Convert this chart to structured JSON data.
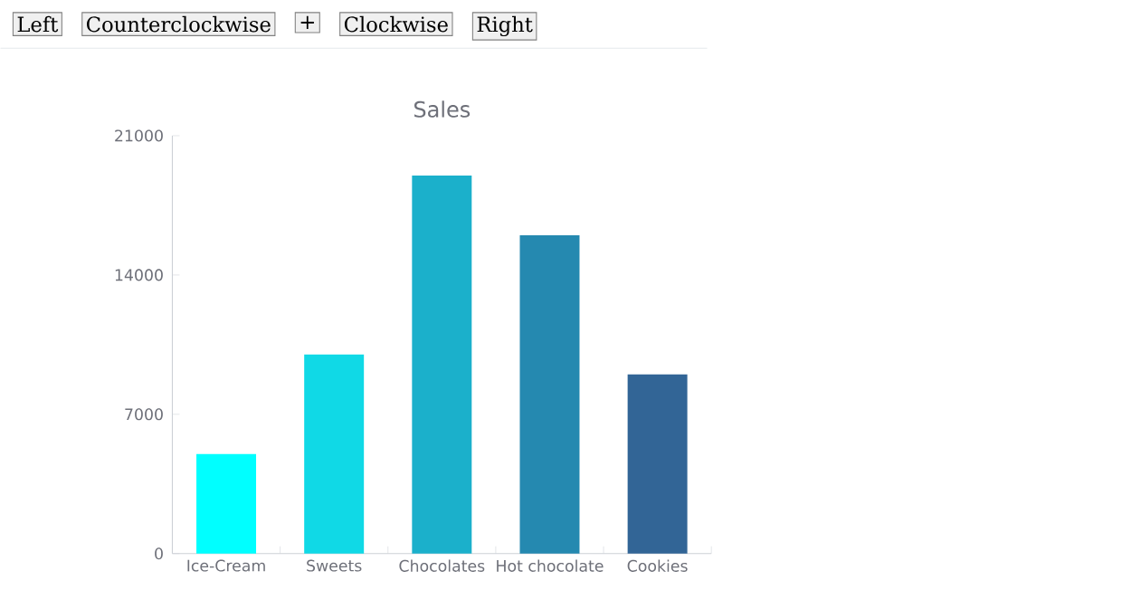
{
  "chart_data": {
    "type": "bar",
    "title": "Sales",
    "categories": [
      "Ice-Cream",
      "Sweets",
      "Chocolates",
      "Hot chocolate",
      "Cookies"
    ],
    "values": [
      5000,
      10000,
      19000,
      16000,
      9000
    ],
    "colors": [
      "#00ffff",
      "#10d9e6",
      "#1bb0cb",
      "#2589b0",
      "#326596"
    ],
    "ylim": [
      0,
      21000
    ],
    "yticks": [
      0,
      7000,
      14000,
      21000
    ],
    "annotations": [
      "Left",
      "Counterclockwise",
      "+",
      "Clockwise",
      "Right"
    ]
  }
}
